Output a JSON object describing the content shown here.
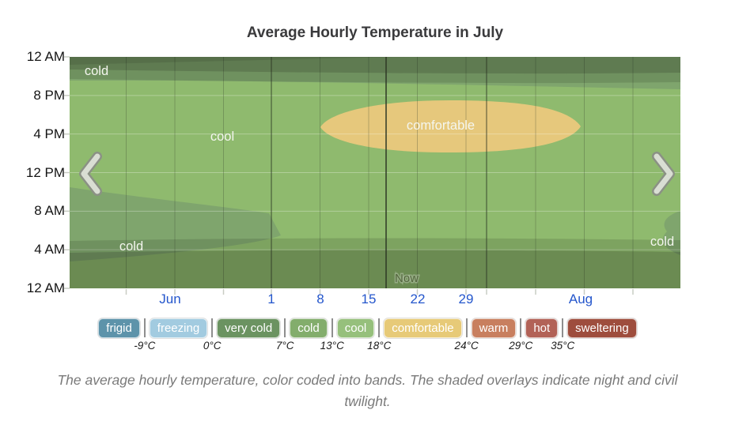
{
  "title": "Average Hourly Temperature in July",
  "chart_data": {
    "type": "area",
    "title": "Average Hourly Temperature in July",
    "x_axis": {
      "ticks": [
        "Jun",
        "1",
        "8",
        "15",
        "22",
        "29",
        "Aug"
      ]
    },
    "y_axis": {
      "ticks": [
        "12 AM",
        "8 PM",
        "4 PM",
        "12 PM",
        "8 AM",
        "4 AM",
        "12 AM"
      ]
    },
    "bands": [
      {
        "label": "frigid",
        "max_c": -9
      },
      {
        "label": "freezing",
        "min_c": -9,
        "max_c": 0
      },
      {
        "label": "very cold",
        "min_c": 0,
        "max_c": 7
      },
      {
        "label": "cold",
        "min_c": 7,
        "max_c": 13
      },
      {
        "label": "cool",
        "min_c": 13,
        "max_c": 18
      },
      {
        "label": "comfortable",
        "min_c": 18,
        "max_c": 24
      },
      {
        "label": "warm",
        "min_c": 24,
        "max_c": 29
      },
      {
        "label": "hot",
        "min_c": 29,
        "max_c": 35
      },
      {
        "label": "sweltering",
        "min_c": 35
      }
    ],
    "regions": [
      {
        "band": "cold",
        "label": "cold",
        "location": "late-night hours, top of chart"
      },
      {
        "band": "cool",
        "label": "cool",
        "location": "most of the chart"
      },
      {
        "band": "comfortable",
        "label": "comfortable",
        "location": "July afternoons, roughly Jul 8 - Jul 31, noon-6 PM"
      },
      {
        "band": "cold",
        "label": "cold",
        "location": "early-June early mornings"
      },
      {
        "band": "cold",
        "label": "cold",
        "location": "late-August early mornings"
      }
    ],
    "overlays": [
      "night",
      "civil twilight"
    ],
    "now_marker": {
      "label": "Now"
    }
  },
  "legend": {
    "items": [
      {
        "label": "frigid",
        "color": "#5d93aa"
      },
      {
        "label": "freezing",
        "color": "#a2cbe0"
      },
      {
        "label": "very cold",
        "color": "#6b9361"
      },
      {
        "label": "cold",
        "color": "#83ad6c"
      },
      {
        "label": "cool",
        "color": "#96c07c"
      },
      {
        "label": "comfortable",
        "color": "#e7ca78"
      },
      {
        "label": "warm",
        "color": "#c87f5f"
      },
      {
        "label": "hot",
        "color": "#b26257"
      },
      {
        "label": "sweltering",
        "color": "#9e4d3d"
      }
    ],
    "thresholds": [
      "-9°C",
      "0°C",
      "7°C",
      "13°C",
      "18°C",
      "24°C",
      "29°C",
      "35°C"
    ]
  },
  "caption": "The average hourly temperature, color coded into bands. The shaded overlays indicate night and civil twilight.",
  "colors": {
    "cool": "#8fba6e",
    "cold": "#7fa56d",
    "comfortable": "#e6c87c",
    "night_overlay": "rgba(0,0,0,0.25)",
    "twilight_overlay": "rgba(0,0,0,0.12)",
    "top_shade": "rgba(0,0,0,0.09)",
    "x_label": "#2456cc",
    "now_text": "#54663e",
    "tick": "#c9cdc4",
    "separator": "#8e8e8e"
  },
  "nav": {
    "prev_icon": "chevron-left-icon",
    "next_icon": "chevron-right-icon"
  }
}
